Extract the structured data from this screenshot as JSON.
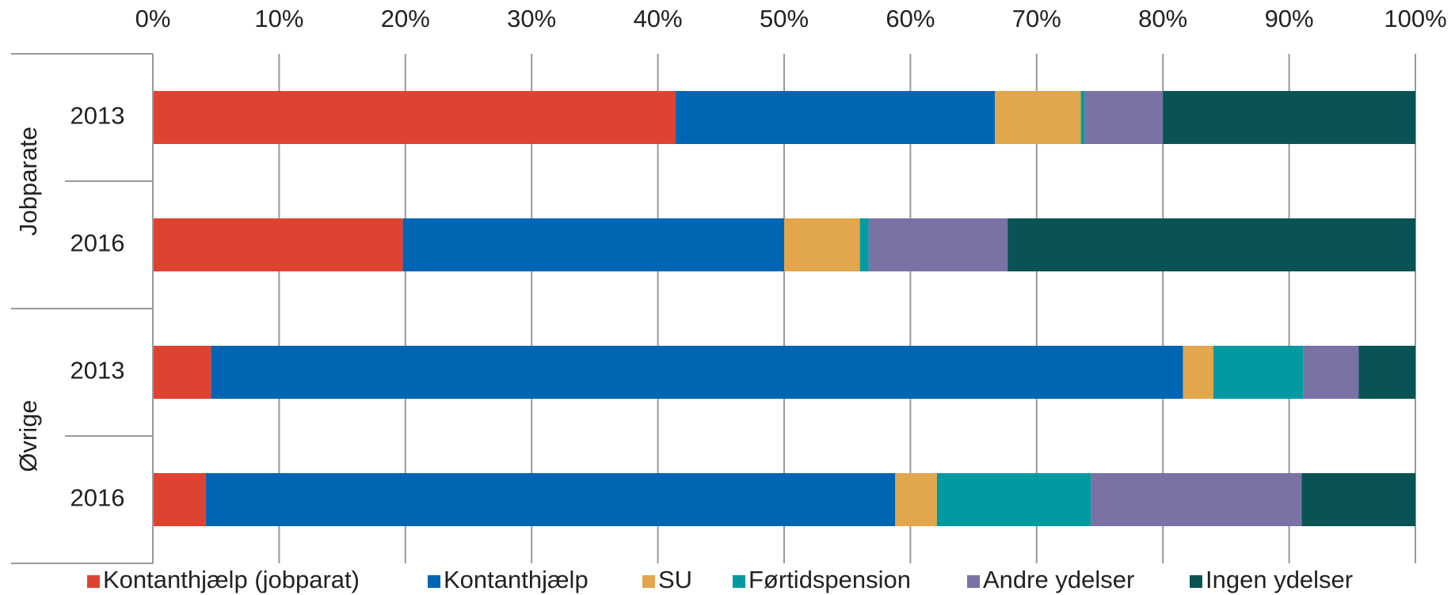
{
  "chart_data": {
    "type": "stacked-bar-horizontal",
    "groups": [
      {
        "name": "Jobparate",
        "categories": [
          "2013",
          "2016"
        ]
      },
      {
        "name": "Øvrige",
        "categories": [
          "2013",
          "2016"
        ]
      }
    ],
    "xlim": [
      0,
      100
    ],
    "xticks": [
      {
        "value": 0,
        "label": "0%"
      },
      {
        "value": 10,
        "label": "10%"
      },
      {
        "value": 20,
        "label": "20%"
      },
      {
        "value": 30,
        "label": "30%"
      },
      {
        "value": 40,
        "label": "40%"
      },
      {
        "value": 50,
        "label": "50%"
      },
      {
        "value": 60,
        "label": "60%"
      },
      {
        "value": 70,
        "label": "70%"
      },
      {
        "value": 80,
        "label": "80%"
      },
      {
        "value": 90,
        "label": "90%"
      },
      {
        "value": 100,
        "label": "100%"
      }
    ],
    "grid": true,
    "legend": "bottom",
    "series": [
      {
        "name": "Kontanthjælp (jobparat)",
        "color": "#de4331",
        "values": [
          41.4,
          19.8,
          4.6,
          4.2
        ]
      },
      {
        "name": "Kontanthjælp",
        "color": "#0066b3",
        "values": [
          25.3,
          30.2,
          77.0,
          54.6
        ]
      },
      {
        "name": "SU",
        "color": "#e2a64c",
        "values": [
          6.8,
          6.0,
          2.4,
          3.3
        ]
      },
      {
        "name": "Førtidspension",
        "color": "#009aa0",
        "values": [
          0.3,
          0.7,
          7.1,
          12.2
        ]
      },
      {
        "name": "Andre ydelser",
        "color": "#7a72a5",
        "values": [
          6.2,
          11.0,
          4.4,
          16.7
        ]
      },
      {
        "name": "Ingen ydelser",
        "color": "#0a5355",
        "values": [
          20.0,
          32.3,
          4.5,
          9.0
        ]
      }
    ]
  }
}
